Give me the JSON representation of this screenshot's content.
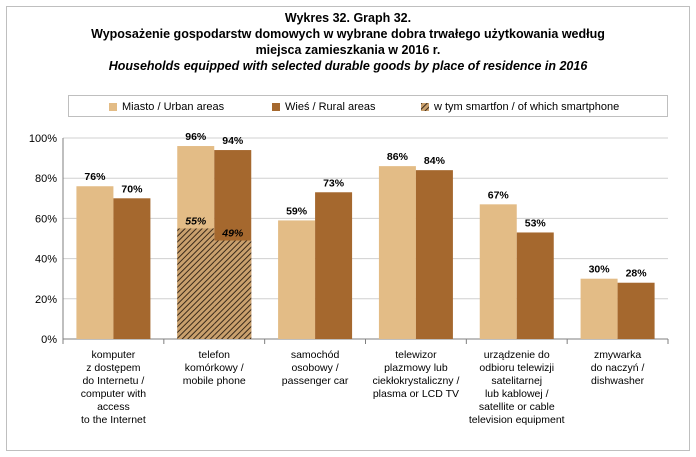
{
  "title": {
    "line1": "Wykres 32. Graph 32.",
    "line2": "Wyposażenie gospodarstw domowych w wybrane dobra trwałego użytkowania według",
    "line3": "miejsca zamieszkania w 2016 r.",
    "line4": "Households equipped with selected durable goods by place of residence in 2016"
  },
  "colors": {
    "urban": "#e3bc86",
    "rural": "#a5682e",
    "hatch_dark": "#3a2a1a",
    "axis": "#7f7f7f",
    "grid": "#d0d0d0"
  },
  "chart_data": {
    "type": "bar",
    "categories": [
      [
        "komputer",
        "z dostępem",
        "do Internetu /",
        "computer with",
        "access",
        "to the Internet"
      ],
      [
        "telefon",
        "komórkowy /",
        "mobile phone"
      ],
      [
        "samochód",
        "osobowy /",
        "passenger car"
      ],
      [
        "telewizor",
        "plazmowy lub",
        "ciekłokrystaliczny /",
        "plasma or LCD TV"
      ],
      [
        "urządzenie do",
        "odbioru telewizji",
        "satelitarnej",
        "lub kablowej /",
        "satellite or cable",
        "television equipment"
      ],
      [
        "zmywarka",
        "do naczyń /",
        "dishwasher"
      ]
    ],
    "series": [
      {
        "name": "Miasto / Urban areas",
        "values": [
          76,
          96,
          59,
          86,
          67,
          30
        ],
        "labels": [
          "76%",
          "96%",
          "59%",
          "86%",
          "67%",
          "30%"
        ]
      },
      {
        "name": "Wieś / Rural areas",
        "values": [
          70,
          94,
          73,
          84,
          53,
          28
        ],
        "labels": [
          "70%",
          "94%",
          "73%",
          "84%",
          "53%",
          "28%"
        ]
      },
      {
        "name": "w tym smartfon / of which smartphone",
        "values": [
          null,
          55,
          null,
          null,
          null,
          null
        ],
        "values_rural": [
          null,
          49,
          null,
          null,
          null,
          null
        ],
        "labels": [
          "",
          "55%",
          "",
          "",
          "",
          ""
        ],
        "labels_rural": [
          "",
          "49%",
          "",
          "",
          "",
          ""
        ]
      }
    ],
    "yticks": [
      "0%",
      "20%",
      "40%",
      "60%",
      "80%",
      "100%"
    ],
    "ylim": [
      0,
      100
    ],
    "legend": "top"
  }
}
